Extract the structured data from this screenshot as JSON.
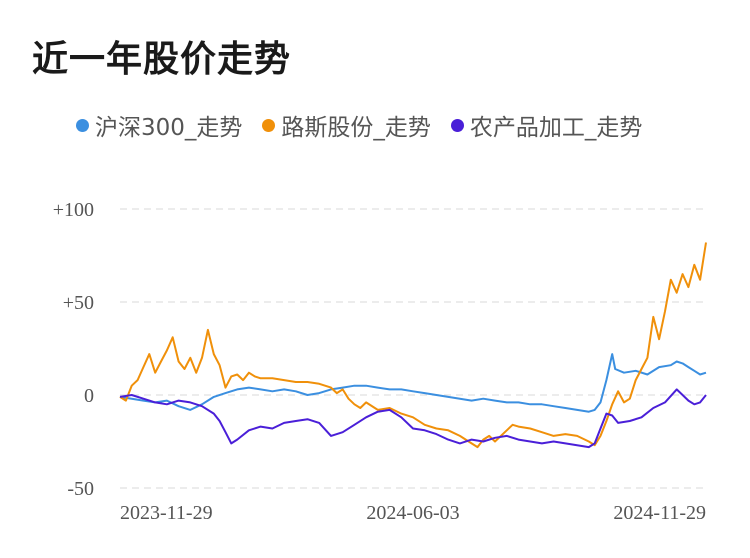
{
  "chart_data": {
    "type": "line",
    "title": "近一年股价走势",
    "x_ticks": [
      "2023-11-29",
      "2024-06-03",
      "2024-11-29"
    ],
    "y_ticks": [
      "+100",
      "+50",
      "0",
      "-50"
    ],
    "ylim": [
      -50,
      100
    ],
    "grid": true,
    "legend_position": "top",
    "series": [
      {
        "name": "沪深300_走势",
        "color": "#3b8fe0",
        "points": [
          [
            0,
            -1
          ],
          [
            0.02,
            -2
          ],
          [
            0.04,
            -3
          ],
          [
            0.06,
            -4
          ],
          [
            0.08,
            -3
          ],
          [
            0.1,
            -6
          ],
          [
            0.12,
            -8
          ],
          [
            0.14,
            -5
          ],
          [
            0.16,
            -1
          ],
          [
            0.18,
            1
          ],
          [
            0.2,
            3
          ],
          [
            0.22,
            4
          ],
          [
            0.24,
            3
          ],
          [
            0.26,
            2
          ],
          [
            0.28,
            3
          ],
          [
            0.3,
            2
          ],
          [
            0.32,
            0
          ],
          [
            0.34,
            1
          ],
          [
            0.36,
            3
          ],
          [
            0.38,
            4
          ],
          [
            0.4,
            5
          ],
          [
            0.42,
            5
          ],
          [
            0.44,
            4
          ],
          [
            0.46,
            3
          ],
          [
            0.48,
            3
          ],
          [
            0.5,
            2
          ],
          [
            0.52,
            1
          ],
          [
            0.54,
            0
          ],
          [
            0.56,
            -1
          ],
          [
            0.58,
            -2
          ],
          [
            0.6,
            -3
          ],
          [
            0.62,
            -2
          ],
          [
            0.64,
            -3
          ],
          [
            0.66,
            -4
          ],
          [
            0.68,
            -4
          ],
          [
            0.7,
            -5
          ],
          [
            0.72,
            -5
          ],
          [
            0.74,
            -6
          ],
          [
            0.76,
            -7
          ],
          [
            0.78,
            -8
          ],
          [
            0.8,
            -9
          ],
          [
            0.81,
            -8
          ],
          [
            0.82,
            -4
          ],
          [
            0.83,
            8
          ],
          [
            0.84,
            22
          ],
          [
            0.845,
            14
          ],
          [
            0.86,
            12
          ],
          [
            0.88,
            13
          ],
          [
            0.9,
            11
          ],
          [
            0.92,
            15
          ],
          [
            0.94,
            16
          ],
          [
            0.95,
            18
          ],
          [
            0.96,
            17
          ],
          [
            0.97,
            15
          ],
          [
            0.98,
            13
          ],
          [
            0.99,
            11
          ],
          [
            1.0,
            12
          ]
        ]
      },
      {
        "name": "路斯股份_走势",
        "color": "#f0900a",
        "points": [
          [
            0,
            -1
          ],
          [
            0.01,
            -3
          ],
          [
            0.02,
            5
          ],
          [
            0.03,
            8
          ],
          [
            0.04,
            15
          ],
          [
            0.05,
            22
          ],
          [
            0.06,
            12
          ],
          [
            0.07,
            18
          ],
          [
            0.08,
            24
          ],
          [
            0.09,
            31
          ],
          [
            0.1,
            18
          ],
          [
            0.11,
            14
          ],
          [
            0.12,
            20
          ],
          [
            0.13,
            12
          ],
          [
            0.14,
            20
          ],
          [
            0.15,
            35
          ],
          [
            0.16,
            22
          ],
          [
            0.17,
            16
          ],
          [
            0.18,
            4
          ],
          [
            0.19,
            10
          ],
          [
            0.2,
            11
          ],
          [
            0.21,
            8
          ],
          [
            0.22,
            12
          ],
          [
            0.23,
            10
          ],
          [
            0.24,
            9
          ],
          [
            0.26,
            9
          ],
          [
            0.28,
            8
          ],
          [
            0.3,
            7
          ],
          [
            0.32,
            7
          ],
          [
            0.34,
            6
          ],
          [
            0.36,
            4
          ],
          [
            0.37,
            1
          ],
          [
            0.38,
            3
          ],
          [
            0.39,
            -2
          ],
          [
            0.4,
            -5
          ],
          [
            0.41,
            -7
          ],
          [
            0.42,
            -4
          ],
          [
            0.44,
            -8
          ],
          [
            0.46,
            -7
          ],
          [
            0.48,
            -10
          ],
          [
            0.5,
            -12
          ],
          [
            0.52,
            -16
          ],
          [
            0.54,
            -18
          ],
          [
            0.56,
            -19
          ],
          [
            0.58,
            -22
          ],
          [
            0.6,
            -26
          ],
          [
            0.61,
            -28
          ],
          [
            0.62,
            -24
          ],
          [
            0.63,
            -22
          ],
          [
            0.64,
            -25
          ],
          [
            0.66,
            -19
          ],
          [
            0.67,
            -16
          ],
          [
            0.68,
            -17
          ],
          [
            0.7,
            -18
          ],
          [
            0.72,
            -20
          ],
          [
            0.74,
            -22
          ],
          [
            0.76,
            -21
          ],
          [
            0.78,
            -22
          ],
          [
            0.8,
            -25
          ],
          [
            0.81,
            -27
          ],
          [
            0.82,
            -22
          ],
          [
            0.83,
            -14
          ],
          [
            0.84,
            -5
          ],
          [
            0.85,
            2
          ],
          [
            0.86,
            -4
          ],
          [
            0.87,
            -2
          ],
          [
            0.88,
            8
          ],
          [
            0.89,
            14
          ],
          [
            0.9,
            20
          ],
          [
            0.91,
            42
          ],
          [
            0.92,
            30
          ],
          [
            0.93,
            45
          ],
          [
            0.94,
            62
          ],
          [
            0.95,
            55
          ],
          [
            0.96,
            65
          ],
          [
            0.97,
            58
          ],
          [
            0.98,
            70
          ],
          [
            0.99,
            62
          ],
          [
            1.0,
            82
          ]
        ]
      },
      {
        "name": "农产品加工_走势",
        "color": "#4a1fd8",
        "points": [
          [
            0,
            -1
          ],
          [
            0.02,
            0
          ],
          [
            0.04,
            -2
          ],
          [
            0.06,
            -4
          ],
          [
            0.08,
            -5
          ],
          [
            0.1,
            -3
          ],
          [
            0.12,
            -4
          ],
          [
            0.14,
            -6
          ],
          [
            0.16,
            -10
          ],
          [
            0.17,
            -14
          ],
          [
            0.18,
            -20
          ],
          [
            0.19,
            -26
          ],
          [
            0.2,
            -24
          ],
          [
            0.22,
            -19
          ],
          [
            0.24,
            -17
          ],
          [
            0.26,
            -18
          ],
          [
            0.28,
            -15
          ],
          [
            0.3,
            -14
          ],
          [
            0.32,
            -13
          ],
          [
            0.34,
            -15
          ],
          [
            0.36,
            -22
          ],
          [
            0.38,
            -20
          ],
          [
            0.4,
            -16
          ],
          [
            0.42,
            -12
          ],
          [
            0.44,
            -9
          ],
          [
            0.46,
            -8
          ],
          [
            0.48,
            -12
          ],
          [
            0.5,
            -18
          ],
          [
            0.52,
            -19
          ],
          [
            0.54,
            -21
          ],
          [
            0.56,
            -24
          ],
          [
            0.58,
            -26
          ],
          [
            0.6,
            -24
          ],
          [
            0.62,
            -25
          ],
          [
            0.64,
            -23
          ],
          [
            0.66,
            -22
          ],
          [
            0.68,
            -24
          ],
          [
            0.7,
            -25
          ],
          [
            0.72,
            -26
          ],
          [
            0.74,
            -25
          ],
          [
            0.76,
            -26
          ],
          [
            0.78,
            -27
          ],
          [
            0.8,
            -28
          ],
          [
            0.81,
            -26
          ],
          [
            0.82,
            -18
          ],
          [
            0.83,
            -10
          ],
          [
            0.84,
            -11
          ],
          [
            0.85,
            -15
          ],
          [
            0.87,
            -14
          ],
          [
            0.89,
            -12
          ],
          [
            0.91,
            -7
          ],
          [
            0.93,
            -4
          ],
          [
            0.95,
            3
          ],
          [
            0.96,
            0
          ],
          [
            0.97,
            -3
          ],
          [
            0.98,
            -5
          ],
          [
            0.99,
            -4
          ],
          [
            1.0,
            0
          ]
        ]
      }
    ]
  }
}
